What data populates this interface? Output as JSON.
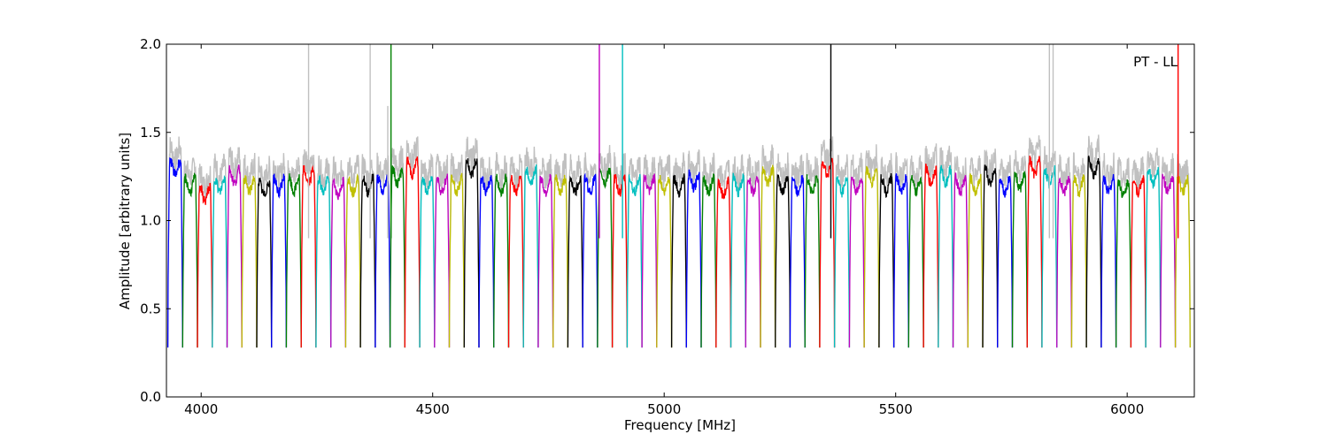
{
  "chart_data": {
    "type": "line",
    "title": "",
    "annotation": "PT - LL",
    "xlabel": "Frequency [MHz]",
    "ylabel": "Amplitude [arbitrary units]",
    "xlim": [
      3925,
      6145
    ],
    "ylim": [
      0.0,
      2.0
    ],
    "x_ticks": [
      4000,
      4500,
      5000,
      5500,
      6000
    ],
    "y_ticks": [
      0.0,
      0.5,
      1.0,
      1.5,
      2.0
    ],
    "x_tick_labels": [
      "4000",
      "4500",
      "5000",
      "5500",
      "6000"
    ],
    "y_tick_labels": [
      "0.0",
      "0.5",
      "1.0",
      "1.5",
      "2.0"
    ],
    "grid": false,
    "background_color": "#c0c0c0",
    "palette": [
      "#0000ff",
      "#008000",
      "#ff0000",
      "#00bfbf",
      "#bf00bf",
      "#bfbf00",
      "#000000"
    ],
    "subband_width_mhz": 32,
    "subband_starts_mhz": [
      3928,
      3960,
      3992,
      4024,
      4056,
      4088,
      4120,
      4152,
      4184,
      4216,
      4248,
      4280,
      4312,
      4344,
      4376,
      4408,
      4440,
      4472,
      4504,
      4536,
      4568,
      4600,
      4632,
      4664,
      4696,
      4728,
      4760,
      4792,
      4824,
      4856,
      4888,
      4920,
      4952,
      4984,
      5016,
      5048,
      5080,
      5112,
      5144,
      5176,
      5208,
      5240,
      5272,
      5304,
      5336,
      5368,
      5400,
      5432,
      5464,
      5496,
      5528,
      5560,
      5592,
      5624,
      5656,
      5688,
      5720,
      5752,
      5784,
      5816,
      5848,
      5880,
      5912,
      5944,
      5976,
      6008,
      6040,
      6072,
      6104
    ],
    "subband_plateau_levels": [
      1.3,
      1.2,
      1.15,
      1.2,
      1.25,
      1.2,
      1.18,
      1.2,
      1.2,
      1.25,
      1.2,
      1.18,
      1.2,
      1.2,
      1.2,
      1.25,
      1.3,
      1.2,
      1.2,
      1.2,
      1.3,
      1.2,
      1.2,
      1.2,
      1.25,
      1.2,
      1.2,
      1.2,
      1.2,
      1.25,
      1.2,
      1.2,
      1.2,
      1.2,
      1.2,
      1.22,
      1.2,
      1.18,
      1.2,
      1.2,
      1.25,
      1.2,
      1.2,
      1.2,
      1.3,
      1.2,
      1.2,
      1.25,
      1.2,
      1.2,
      1.2,
      1.25,
      1.25,
      1.2,
      1.2,
      1.25,
      1.2,
      1.22,
      1.3,
      1.25,
      1.2,
      1.2,
      1.3,
      1.2,
      1.18,
      1.2,
      1.25,
      1.2,
      1.2
    ],
    "subband_edge_minimum": 0.28,
    "spikes": [
      {
        "x": 4232,
        "y": 2.0,
        "series": "background"
      },
      {
        "x": 4365,
        "y": 2.0,
        "series": "background"
      },
      {
        "x": 4403,
        "y": 1.65,
        "series": "background"
      },
      {
        "x": 4410,
        "y": 2.0,
        "series": "green"
      },
      {
        "x": 4860,
        "y": 2.0,
        "series": "magenta"
      },
      {
        "x": 4910,
        "y": 2.0,
        "series": "cyan"
      },
      {
        "x": 5360,
        "y": 2.0,
        "series": "black"
      },
      {
        "x": 5832,
        "y": 2.0,
        "series": "background"
      },
      {
        "x": 5840,
        "y": 2.0,
        "series": "background"
      },
      {
        "x": 6110,
        "y": 2.0,
        "series": "red"
      }
    ]
  }
}
